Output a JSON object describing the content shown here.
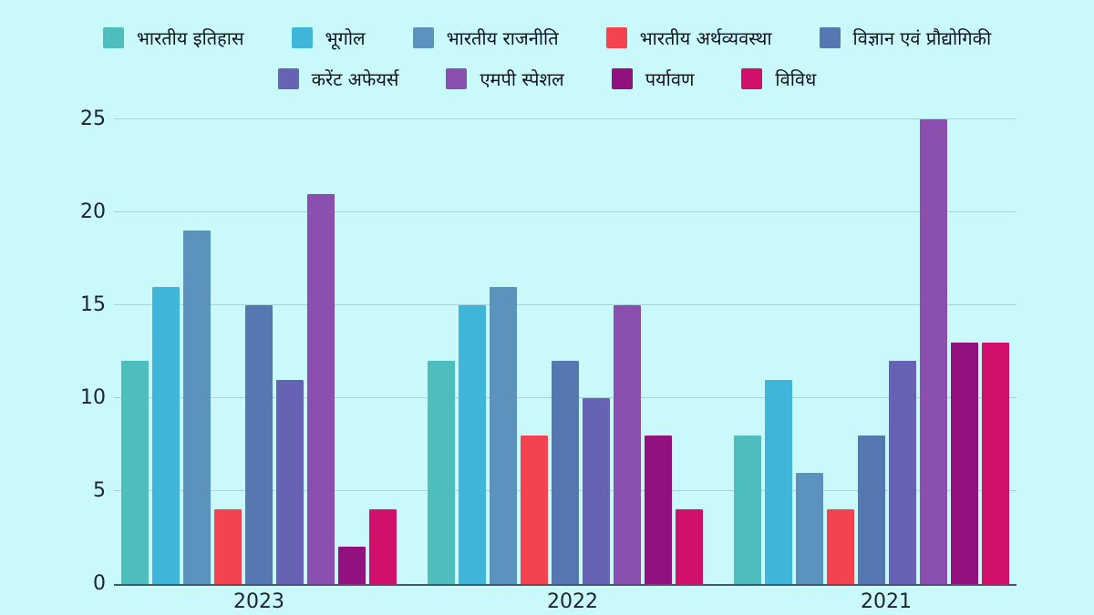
{
  "chart_data": {
    "type": "bar",
    "title": "",
    "categories": [
      "2023",
      "2022",
      "2021"
    ],
    "series": [
      {
        "name": "भारतीय इतिहास",
        "color": "#4DBDBE",
        "values": [
          12,
          12,
          8
        ]
      },
      {
        "name": "भूगोल",
        "color": "#3FB6D9",
        "values": [
          16,
          15,
          11
        ]
      },
      {
        "name": "भारतीय राजनीति",
        "color": "#5B92BE",
        "values": [
          19,
          16,
          6
        ]
      },
      {
        "name": "भारतीय अर्थव्यवस्था",
        "color": "#F4424F",
        "values": [
          4,
          8,
          4
        ]
      },
      {
        "name": "विज्ञान एवं प्रौद्योगिकी",
        "color": "#5577B2",
        "values": [
          15,
          12,
          8
        ]
      },
      {
        "name": "करेंट अफेयर्स",
        "color": "#6662B4",
        "values": [
          11,
          10,
          12
        ]
      },
      {
        "name": "एमपी स्पेशल",
        "color": "#8B50AF",
        "values": [
          21,
          15,
          25
        ]
      },
      {
        "name": "पर्यावण",
        "color": "#93117E",
        "values": [
          2,
          8,
          13
        ]
      },
      {
        "name": "विविध",
        "color": "#D2106C",
        "values": [
          4,
          4,
          13
        ]
      }
    ],
    "xlabel": "",
    "ylabel": "",
    "ylim": [
      0,
      25
    ],
    "yticks": [
      0,
      5,
      10,
      15,
      20,
      25
    ],
    "grid": true,
    "legend_position": "top",
    "legend_rows": [
      5,
      4
    ],
    "background": "#CAF9FB",
    "axis_text_color": "#1d252e"
  }
}
